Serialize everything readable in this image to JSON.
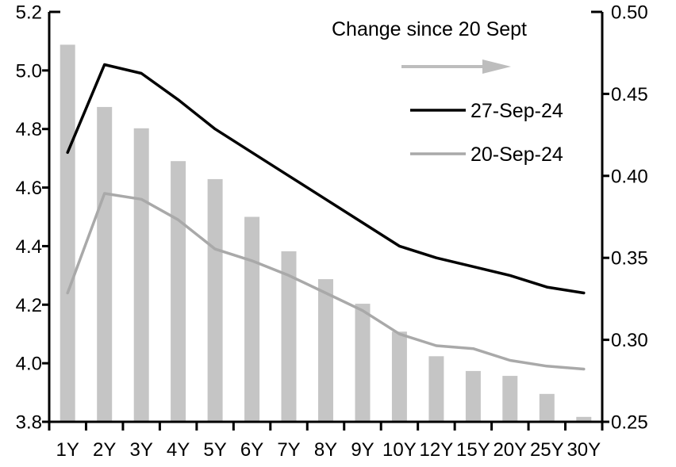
{
  "chart_data": {
    "type": "combo_bar_line",
    "title": "",
    "categories": [
      "1Y",
      "2Y",
      "3Y",
      "4Y",
      "5Y",
      "6Y",
      "7Y",
      "8Y",
      "9Y",
      "10Y",
      "12Y",
      "15Y",
      "20Y",
      "25Y",
      "30Y"
    ],
    "left_axis": {
      "min": 3.8,
      "max": 5.2,
      "ticks": [
        "5.2",
        "5.0",
        "4.8",
        "4.6",
        "4.4",
        "4.2",
        "4.0",
        "3.8"
      ]
    },
    "right_axis": {
      "min": 0.25,
      "max": 0.5,
      "ticks": [
        "0.50",
        "0.45",
        "0.40",
        "0.35",
        "0.30",
        "0.25"
      ]
    },
    "series": [
      {
        "name": "Change since 20 Sept",
        "type": "bar",
        "axis": "right",
        "color": "#c5c5c5",
        "values": [
          0.48,
          0.442,
          0.429,
          0.409,
          0.398,
          0.375,
          0.354,
          0.337,
          0.322,
          0.305,
          0.29,
          0.281,
          0.278,
          0.267,
          0.253
        ]
      },
      {
        "name": "27-Sep-24",
        "type": "line",
        "axis": "left",
        "color": "#000000",
        "values": [
          4.72,
          5.02,
          4.99,
          4.9,
          4.8,
          4.72,
          4.64,
          4.56,
          4.48,
          4.4,
          4.36,
          4.33,
          4.3,
          4.26,
          4.24
        ]
      },
      {
        "name": "20-Sep-24",
        "type": "line",
        "axis": "left",
        "color": "#a9a9a9",
        "values": [
          4.24,
          4.58,
          4.56,
          4.49,
          4.39,
          4.35,
          4.3,
          4.24,
          4.18,
          4.1,
          4.06,
          4.05,
          4.01,
          3.99,
          3.98
        ]
      }
    ],
    "legend": {
      "change_label": "Change since 20 Sept",
      "series1_label": "27-Sep-24",
      "series2_label": "20-Sep-24",
      "arrow_color": "#bdbdbd",
      "position": "top-right-inside"
    },
    "grid": false,
    "axis_color": "#000000"
  }
}
